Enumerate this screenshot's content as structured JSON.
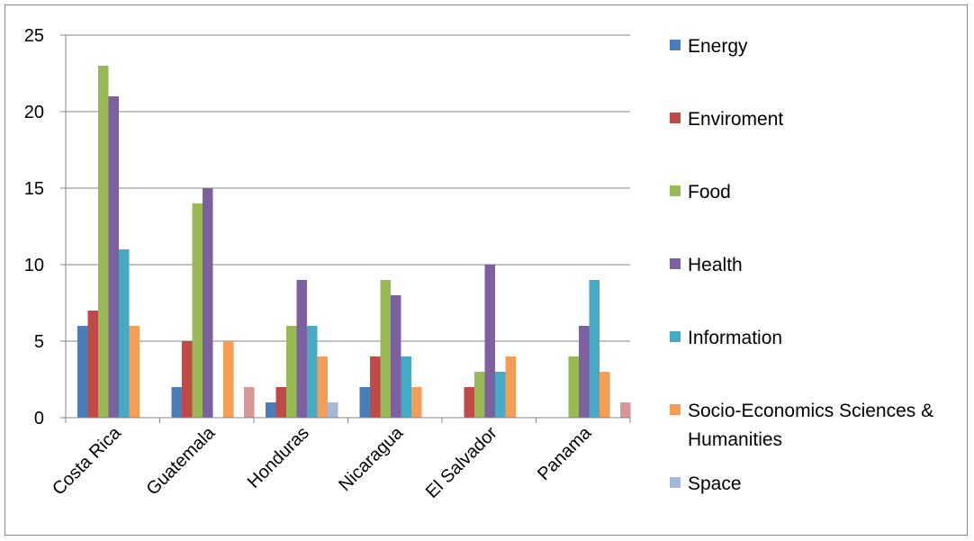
{
  "chart_data": {
    "type": "bar",
    "title": "",
    "xlabel": "",
    "ylabel": "",
    "ylim": [
      0,
      25
    ],
    "yticks": [
      0,
      5,
      10,
      15,
      20,
      25
    ],
    "grid": true,
    "legend_position": "right",
    "categories": [
      "Costa Rica",
      "Guatemala",
      "Honduras",
      "Nicaragua",
      "El Salvador",
      "Panama"
    ],
    "series": [
      {
        "name": "Energy",
        "color": "#4a7ebb",
        "values": [
          6,
          2,
          1,
          2,
          0,
          0
        ]
      },
      {
        "name": "Enviroment",
        "color": "#be4b48",
        "values": [
          7,
          5,
          2,
          4,
          2,
          0
        ]
      },
      {
        "name": "Food",
        "color": "#98b954",
        "values": [
          23,
          14,
          6,
          9,
          3,
          4
        ]
      },
      {
        "name": "Health",
        "color": "#7d60a0",
        "values": [
          21,
          15,
          9,
          8,
          10,
          6
        ]
      },
      {
        "name": "Information",
        "color": "#46aac5",
        "values": [
          11,
          0,
          6,
          4,
          3,
          9
        ]
      },
      {
        "name": "Socio-Economics Sciences & Humanities",
        "legend_lines": [
          "Socio-Economics Sciences &",
          "Humanities"
        ],
        "color": "#f59d56",
        "values": [
          6,
          5,
          4,
          2,
          4,
          3
        ]
      },
      {
        "name": "Space",
        "color": "#a5b8da",
        "values": [
          0,
          0,
          1,
          0,
          0,
          0
        ]
      },
      {
        "name": "",
        "color": "#d99694",
        "values": [
          0,
          2,
          0,
          0,
          0,
          1
        ]
      }
    ]
  }
}
